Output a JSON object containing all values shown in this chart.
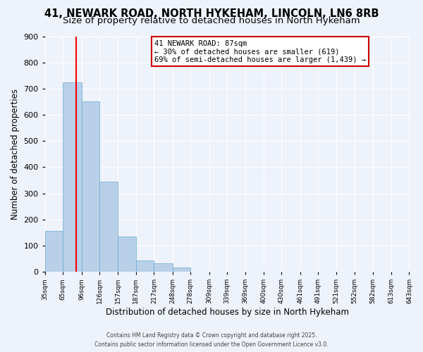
{
  "title": "41, NEWARK ROAD, NORTH HYKEHAM, LINCOLN, LN6 8RB",
  "subtitle": "Size of property relative to detached houses in North Hykeham",
  "xlabel": "Distribution of detached houses by size in North Hykeham",
  "ylabel": "Number of detached properties",
  "bar_values": [
    155,
    725,
    650,
    345,
    135,
    42,
    32,
    15,
    0,
    0,
    0,
    0,
    0,
    0,
    0,
    0,
    0,
    0,
    0,
    0
  ],
  "bin_labels": [
    "35sqm",
    "65sqm",
    "96sqm",
    "126sqm",
    "157sqm",
    "187sqm",
    "217sqm",
    "248sqm",
    "278sqm",
    "309sqm",
    "339sqm",
    "369sqm",
    "400sqm",
    "430sqm",
    "461sqm",
    "491sqm",
    "521sqm",
    "552sqm",
    "582sqm",
    "613sqm",
    "643sqm"
  ],
  "bar_color": "#b8d0e8",
  "bar_edge_color": "#6aaad4",
  "ylim": [
    0,
    900
  ],
  "red_line_x": 87,
  "bin_edges": [
    35,
    65,
    96,
    126,
    157,
    187,
    217,
    248,
    278,
    309,
    339,
    369,
    400,
    430,
    461,
    491,
    521,
    552,
    582,
    613,
    643
  ],
  "annotation_title": "41 NEWARK ROAD: 87sqm",
  "annotation_line1": "← 30% of detached houses are smaller (619)",
  "annotation_line2": "69% of semi-detached houses are larger (1,439) →",
  "annotation_box_color": "#ffffff",
  "annotation_box_edge": "#cc0000",
  "footer1": "Contains HM Land Registry data © Crown copyright and database right 2025.",
  "footer2": "Contains public sector information licensed under the Open Government Licence v3.0.",
  "bg_color": "#eef2fa",
  "grid_color": "#ffffff",
  "title_fontsize": 10.5,
  "subtitle_fontsize": 9.5,
  "yticks": [
    0,
    100,
    200,
    300,
    400,
    500,
    600,
    700,
    800,
    900
  ]
}
